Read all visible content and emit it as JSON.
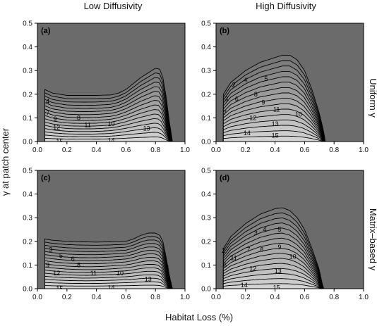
{
  "figure": {
    "col_titles": [
      "Low Diffusivity",
      "High Diffusivity"
    ],
    "row_titles": [
      "Uniform γ",
      "Matrix–based γ"
    ],
    "ylabel": "γ at patch center",
    "xlabel": "Habitat Loss (%)",
    "colors": {
      "panel_bg": "#6b6b6b",
      "contour_line": "#000000",
      "fill_light": "#d9d9d9",
      "fill_dark": "#6b6b6b"
    }
  },
  "chart_data": [
    {
      "type": "contour",
      "panel": "(a)",
      "xlim": [
        0,
        1
      ],
      "ylim": [
        0,
        0.5
      ],
      "xticks": [
        "0.0",
        "0.2",
        "0.4",
        "0.6",
        "0.8",
        "1.0"
      ],
      "yticks": [
        "0.0",
        "0.1",
        "0.2",
        "0.3",
        "0.4",
        "0.5"
      ],
      "boundary": [
        [
          0.05,
          0.22
        ],
        [
          0.1,
          0.205
        ],
        [
          0.2,
          0.195
        ],
        [
          0.3,
          0.195
        ],
        [
          0.4,
          0.195
        ],
        [
          0.5,
          0.197
        ],
        [
          0.55,
          0.205
        ],
        [
          0.6,
          0.22
        ],
        [
          0.65,
          0.245
        ],
        [
          0.7,
          0.27
        ],
        [
          0.75,
          0.29
        ],
        [
          0.8,
          0.31
        ],
        [
          0.83,
          0.305
        ],
        [
          0.85,
          0.27
        ],
        [
          0.87,
          0.2
        ],
        [
          0.89,
          0.1
        ],
        [
          0.91,
          0.02
        ],
        [
          0.915,
          0
        ]
      ],
      "peak": [
        0.8,
        0.31
      ],
      "end_x": 0.915,
      "n_levels": 16,
      "dip": 0.18,
      "contour_labels": [
        {
          "text": "4",
          "x": 0.07,
          "y": 0.17
        },
        {
          "text": "7",
          "x": 0.07,
          "y": 0.12
        },
        {
          "text": "9",
          "x": 0.12,
          "y": 0.095
        },
        {
          "text": "8",
          "x": 0.28,
          "y": 0.1
        },
        {
          "text": "12",
          "x": 0.13,
          "y": 0.06
        },
        {
          "text": "11",
          "x": 0.34,
          "y": 0.07
        },
        {
          "text": "10",
          "x": 0.5,
          "y": 0.075
        },
        {
          "text": "13",
          "x": 0.74,
          "y": 0.055
        },
        {
          "text": "14",
          "x": 0.5,
          "y": 0.005
        },
        {
          "text": "15",
          "x": 0.15,
          "y": 0.0
        },
        {
          "text": "5",
          "x": 0.88,
          "y": 0.06
        },
        {
          "text": "2",
          "x": 0.9,
          "y": 0.02
        }
      ]
    },
    {
      "type": "contour",
      "panel": "(b)",
      "xlim": [
        0,
        1
      ],
      "ylim": [
        0,
        0.5
      ],
      "xticks": [
        "0.0",
        "0.2",
        "0.4",
        "0.6",
        "0.8",
        "1.0"
      ],
      "yticks": [
        "0.0",
        "0.1",
        "0.2",
        "0.3",
        "0.4",
        "0.5"
      ],
      "boundary": [
        [
          0.05,
          0.2
        ],
        [
          0.1,
          0.25
        ],
        [
          0.2,
          0.3
        ],
        [
          0.3,
          0.335
        ],
        [
          0.4,
          0.355
        ],
        [
          0.45,
          0.365
        ],
        [
          0.5,
          0.365
        ],
        [
          0.55,
          0.345
        ],
        [
          0.6,
          0.3
        ],
        [
          0.65,
          0.22
        ],
        [
          0.7,
          0.12
        ],
        [
          0.73,
          0.04
        ],
        [
          0.74,
          0
        ]
      ],
      "peak": [
        0.46,
        0.365
      ],
      "end_x": 0.74,
      "n_levels": 16,
      "dip": 0.0,
      "contour_labels": [
        {
          "text": "2",
          "x": 0.12,
          "y": 0.24
        },
        {
          "text": "4",
          "x": 0.2,
          "y": 0.26
        },
        {
          "text": "5",
          "x": 0.34,
          "y": 0.265
        },
        {
          "text": "3",
          "x": 0.07,
          "y": 0.18
        },
        {
          "text": "6",
          "x": 0.14,
          "y": 0.18
        },
        {
          "text": "8",
          "x": 0.27,
          "y": 0.2
        },
        {
          "text": "7",
          "x": 0.06,
          "y": 0.12
        },
        {
          "text": "9",
          "x": 0.32,
          "y": 0.165
        },
        {
          "text": "11",
          "x": 0.41,
          "y": 0.135
        },
        {
          "text": "10",
          "x": 0.56,
          "y": 0.115
        },
        {
          "text": "12",
          "x": 0.25,
          "y": 0.1
        },
        {
          "text": "13",
          "x": 0.4,
          "y": 0.075
        },
        {
          "text": "14",
          "x": 0.21,
          "y": 0.035
        },
        {
          "text": "15",
          "x": 0.4,
          "y": 0.025
        }
      ]
    },
    {
      "type": "contour",
      "panel": "(c)",
      "xlim": [
        0,
        1
      ],
      "ylim": [
        0,
        0.5
      ],
      "xticks": [
        "0.0",
        "0.2",
        "0.4",
        "0.6",
        "0.8",
        "1.0"
      ],
      "yticks": [
        "0.0",
        "0.1",
        "0.2",
        "0.3",
        "0.4",
        "0.5"
      ],
      "boundary": [
        [
          0.05,
          0.21
        ],
        [
          0.1,
          0.205
        ],
        [
          0.2,
          0.2
        ],
        [
          0.3,
          0.198
        ],
        [
          0.4,
          0.197
        ],
        [
          0.5,
          0.198
        ],
        [
          0.6,
          0.2
        ],
        [
          0.65,
          0.21
        ],
        [
          0.7,
          0.225
        ],
        [
          0.75,
          0.235
        ],
        [
          0.8,
          0.235
        ],
        [
          0.83,
          0.225
        ],
        [
          0.85,
          0.2
        ],
        [
          0.87,
          0.14
        ],
        [
          0.89,
          0.07
        ],
        [
          0.91,
          0.01
        ],
        [
          0.915,
          0
        ]
      ],
      "peak": [
        0.78,
        0.237
      ],
      "end_x": 0.915,
      "n_levels": 16,
      "dip": 0.12,
      "contour_labels": [
        {
          "text": "3",
          "x": 0.09,
          "y": 0.165
        },
        {
          "text": "5",
          "x": 0.16,
          "y": 0.14
        },
        {
          "text": "6",
          "x": 0.24,
          "y": 0.125
        },
        {
          "text": "9",
          "x": 0.07,
          "y": 0.1
        },
        {
          "text": "8",
          "x": 0.28,
          "y": 0.1
        },
        {
          "text": "12",
          "x": 0.13,
          "y": 0.065
        },
        {
          "text": "11",
          "x": 0.38,
          "y": 0.065
        },
        {
          "text": "10",
          "x": 0.56,
          "y": 0.065
        },
        {
          "text": "13",
          "x": 0.75,
          "y": 0.04
        },
        {
          "text": "14",
          "x": 0.5,
          "y": 0.005
        },
        {
          "text": "15",
          "x": 0.15,
          "y": 0.0
        },
        {
          "text": "4",
          "x": 0.88,
          "y": 0.09
        },
        {
          "text": "2",
          "x": 0.9,
          "y": 0.02
        }
      ]
    },
    {
      "type": "contour",
      "panel": "(d)",
      "xlim": [
        0,
        1
      ],
      "ylim": [
        0,
        0.5
      ],
      "xticks": [
        "0.0",
        "0.2",
        "0.4",
        "0.6",
        "0.8",
        "1.0"
      ],
      "yticks": [
        "0.0",
        "0.1",
        "0.2",
        "0.3",
        "0.4",
        "0.5"
      ],
      "boundary": [
        [
          0.05,
          0.17
        ],
        [
          0.1,
          0.22
        ],
        [
          0.2,
          0.275
        ],
        [
          0.3,
          0.315
        ],
        [
          0.4,
          0.338
        ],
        [
          0.45,
          0.342
        ],
        [
          0.5,
          0.33
        ],
        [
          0.55,
          0.3
        ],
        [
          0.6,
          0.25
        ],
        [
          0.65,
          0.17
        ],
        [
          0.7,
          0.08
        ],
        [
          0.72,
          0.02
        ],
        [
          0.73,
          0
        ]
      ],
      "peak": [
        0.43,
        0.343
      ],
      "end_x": 0.73,
      "n_levels": 16,
      "dip": 0.0,
      "contour_labels": [
        {
          "text": "2",
          "x": 0.05,
          "y": 0.16
        },
        {
          "text": "3",
          "x": 0.27,
          "y": 0.235
        },
        {
          "text": "4",
          "x": 0.33,
          "y": 0.25
        },
        {
          "text": "5",
          "x": 0.43,
          "y": 0.25
        },
        {
          "text": "6",
          "x": 0.06,
          "y": 0.1
        },
        {
          "text": "7",
          "x": 0.22,
          "y": 0.165
        },
        {
          "text": "8",
          "x": 0.31,
          "y": 0.165
        },
        {
          "text": "9",
          "x": 0.43,
          "y": 0.175
        },
        {
          "text": "10",
          "x": 0.52,
          "y": 0.135
        },
        {
          "text": "11",
          "x": 0.12,
          "y": 0.13
        },
        {
          "text": "12",
          "x": 0.25,
          "y": 0.085
        },
        {
          "text": "13",
          "x": 0.42,
          "y": 0.075
        },
        {
          "text": "14",
          "x": 0.19,
          "y": 0.015
        },
        {
          "text": "15",
          "x": 0.41,
          "y": 0.005
        }
      ]
    }
  ]
}
